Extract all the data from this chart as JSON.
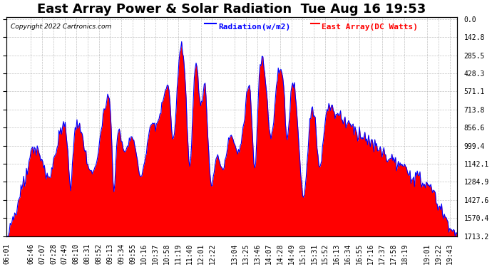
{
  "title": "East Array Power & Solar Radiation  Tue Aug 16 19:53",
  "copyright": "Copyright 2022 Cartronics.com",
  "legend_radiation": "Radiation(w/m2)",
  "legend_east": "East Array(DC Watts)",
  "legend_radiation_color": "blue",
  "legend_east_color": "red",
  "ylabel_right": [
    "1713.2",
    "1570.4",
    "1427.6",
    "1284.9",
    "1142.1",
    "999.4",
    "856.6",
    "713.8",
    "571.1",
    "428.3",
    "285.5",
    "142.8",
    "0.0"
  ],
  "ymax": 1713.2,
  "ymin": 0.0,
  "yticks": [
    0.0,
    142.8,
    285.5,
    428.3,
    571.1,
    713.8,
    856.6,
    999.4,
    1142.1,
    1284.9,
    1427.6,
    1570.4,
    1713.2
  ],
  "background_color": "#ffffff",
  "plot_bg_color": "#ffffff",
  "grid_color": "#aaaaaa",
  "fill_color": "red",
  "line_color": "blue",
  "title_fontsize": 13,
  "tick_fontsize": 7,
  "xtick_labels": [
    "06:01",
    "06:46",
    "07:07",
    "07:28",
    "07:49",
    "08:10",
    "08:31",
    "08:52",
    "09:13",
    "09:34",
    "09:55",
    "10:16",
    "10:37",
    "10:58",
    "11:19",
    "11:40",
    "12:01",
    "12:22",
    "13:04",
    "13:25",
    "13:46",
    "14:07",
    "14:28",
    "14:49",
    "15:10",
    "15:31",
    "15:52",
    "16:13",
    "16:34",
    "16:55",
    "17:16",
    "17:37",
    "17:58",
    "18:19",
    "19:01",
    "19:22",
    "19:43"
  ]
}
